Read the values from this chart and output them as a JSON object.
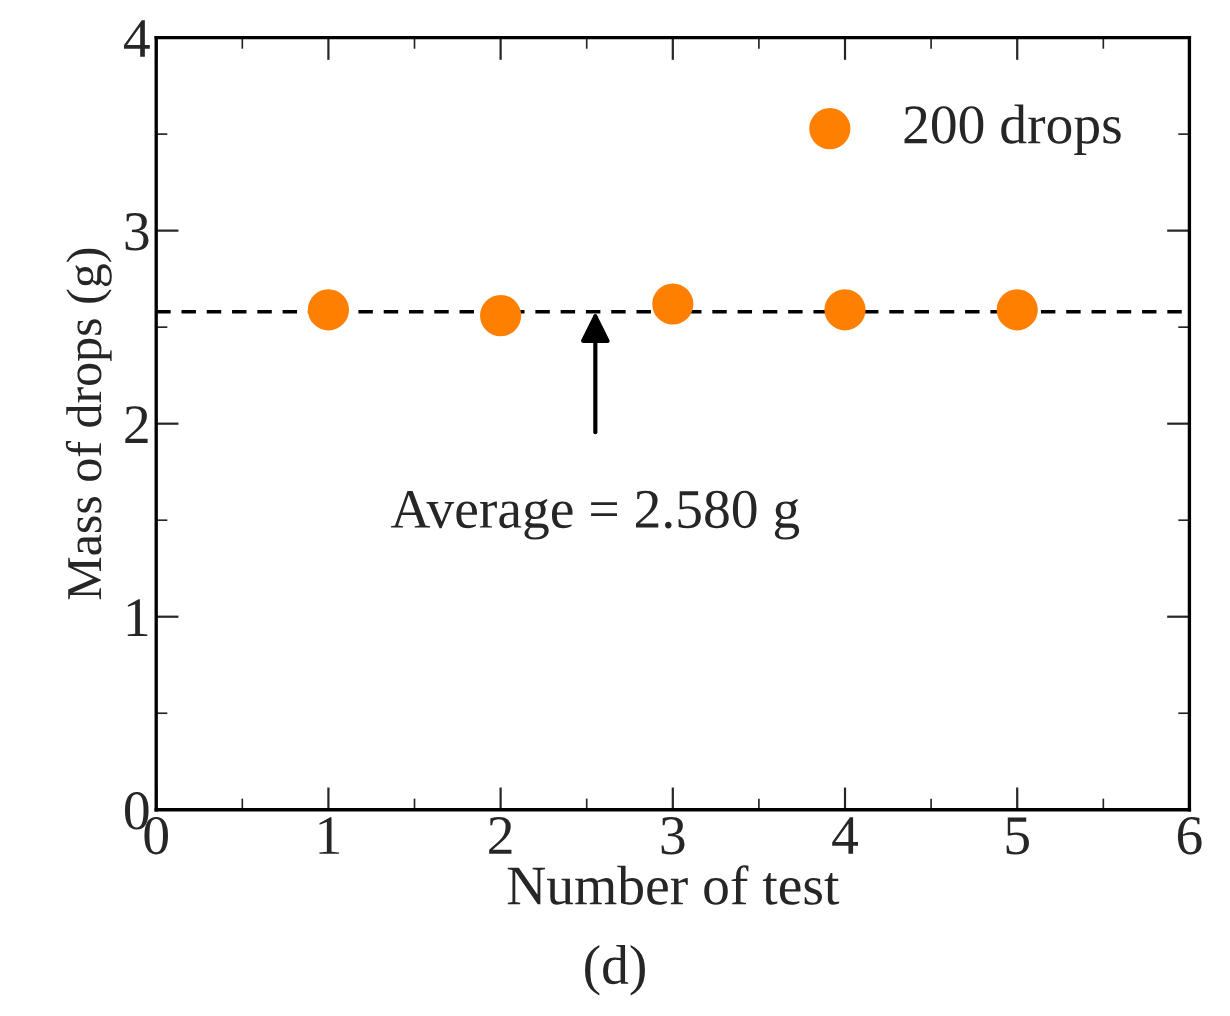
{
  "chart_data": {
    "type": "scatter",
    "xlabel": "Number of test",
    "ylabel": "Mass of drops (g)",
    "x": [
      1,
      2,
      3,
      4,
      5
    ],
    "series": [
      {
        "name": "200 drops",
        "color": "#ff8000",
        "values": [
          2.59,
          2.56,
          2.62,
          2.59,
          2.59
        ]
      }
    ],
    "xlim": [
      0,
      6
    ],
    "xticks": [
      0,
      1,
      2,
      3,
      4,
      5,
      6
    ],
    "ylim": [
      0,
      4
    ],
    "yticks": [
      0,
      1,
      2,
      3,
      4
    ],
    "ref_lines": [
      {
        "axis": "y",
        "value": 2.58,
        "color": "#000000",
        "line_style": "dashed"
      }
    ],
    "annotations": [
      {
        "text": "Average = 2.580 g",
        "x": 2.55,
        "y": 2.58
      },
      "(d)"
    ],
    "marker": "circle",
    "legend": "top right",
    "grid": false
  }
}
